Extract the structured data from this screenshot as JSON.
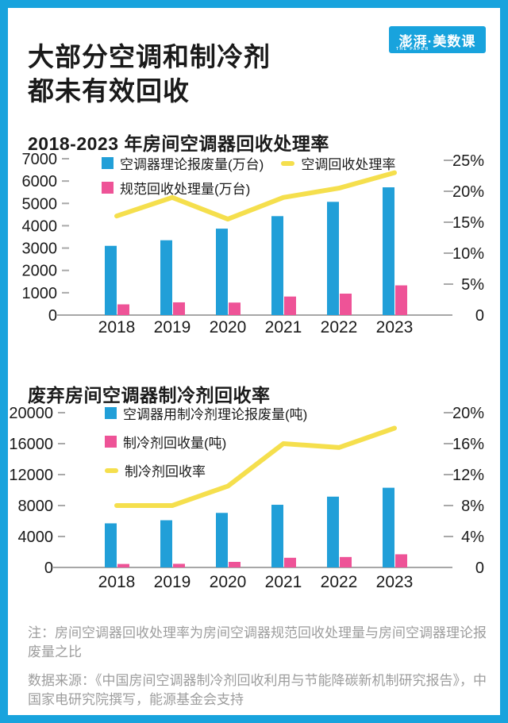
{
  "header": {
    "title": "大部分空调和制冷剂\n都未有效回收",
    "logo_text": "澎湃·美数课",
    "logo_subtext": "THE PAPER"
  },
  "colors": {
    "frame_blue": "#18a3dd",
    "bar_blue": "#219fd8",
    "bar_pink": "#ee5397",
    "line_yellow": "#f5df4d",
    "text_dark": "#1a1a1a",
    "axis_line": "#8a8a8a",
    "tick_gray": "#a9a9a9",
    "note_gray": "#9d9d9d"
  },
  "chart_data": [
    {
      "type": "bar",
      "title": "2018-2023 年房间空调器回收处理率",
      "categories": [
        "2018",
        "2019",
        "2020",
        "2021",
        "2022",
        "2023"
      ],
      "series": [
        {
          "name": "空调器理论报废量(万台)",
          "kind": "bar",
          "axis": "left",
          "color": "bar_blue",
          "values": [
            3100,
            3350,
            3870,
            4430,
            5070,
            5720
          ]
        },
        {
          "name": "规范回收处理量(万台)",
          "kind": "bar",
          "axis": "left",
          "color": "bar_pink",
          "values": [
            480,
            570,
            560,
            830,
            960,
            1330
          ]
        },
        {
          "name": "空调回收处理率",
          "kind": "line",
          "axis": "right",
          "color": "line_yellow",
          "values": [
            16,
            19,
            15.5,
            19,
            20.5,
            23
          ]
        }
      ],
      "left_axis": {
        "max": 7000,
        "ticks": [
          7000,
          6000,
          5000,
          4000,
          3000,
          2000,
          1000,
          0
        ]
      },
      "right_axis": {
        "max": 25,
        "ticks": [
          25,
          20,
          15,
          10,
          5,
          0
        ],
        "labels": [
          "25%",
          "20%",
          "15%",
          "10%",
          "5%",
          "0"
        ]
      },
      "legend_position": "top-inside",
      "grid": false
    },
    {
      "type": "bar",
      "title": "废弃房间空调器制冷剂回收率",
      "categories": [
        "2018",
        "2019",
        "2020",
        "2021",
        "2022",
        "2023"
      ],
      "series": [
        {
          "name": "空调器用制冷剂理论报废量(吨)",
          "kind": "bar",
          "axis": "left",
          "color": "bar_blue",
          "values": [
            5700,
            6100,
            7050,
            8100,
            9150,
            10300
          ]
        },
        {
          "name": "制冷剂回收量(吨)",
          "kind": "bar",
          "axis": "left",
          "color": "bar_pink",
          "values": [
            450,
            470,
            720,
            1250,
            1350,
            1700
          ]
        },
        {
          "name": "制冷剂回收率",
          "kind": "line",
          "axis": "right",
          "color": "line_yellow",
          "values": [
            8,
            8,
            10.5,
            16,
            15.5,
            18
          ]
        }
      ],
      "left_axis": {
        "max": 20000,
        "ticks": [
          20000,
          16000,
          12000,
          8000,
          4000,
          0
        ]
      },
      "right_axis": {
        "max": 20,
        "ticks": [
          20,
          16,
          12,
          8,
          4,
          0
        ],
        "labels": [
          "20%",
          "16%",
          "12%",
          "8%",
          "4%",
          "0"
        ]
      },
      "legend_position": "top-left-inside",
      "grid": false
    }
  ],
  "notes": {
    "note": "注：房间空调器回收处理率为房间空调器规范回收处理量与房间空调器理论报废量之比",
    "source": "数据来源：《中国房间空调器制冷剂回收利用与节能降碳新机制研究报告》，中国家电研究院撰写，能源基金会支持"
  }
}
